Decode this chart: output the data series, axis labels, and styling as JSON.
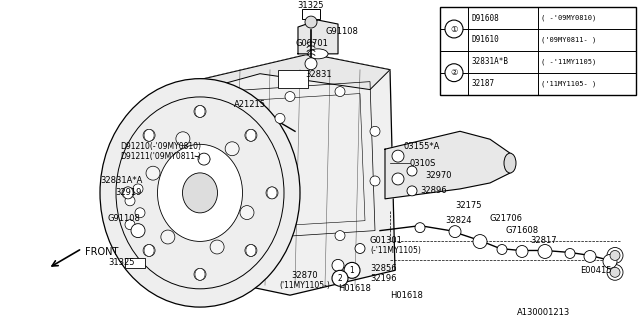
{
  "bg_color": "#ffffff",
  "line_color": "#000000",
  "table": {
    "rows": [
      [
        "D91608",
        "( -'09MY0810)"
      ],
      [
        "D91610",
        "('09MY0811- )"
      ],
      [
        "32831A*B",
        "( -'11MY1105)"
      ],
      [
        "32187",
        "('11MY1105- )"
      ]
    ]
  }
}
